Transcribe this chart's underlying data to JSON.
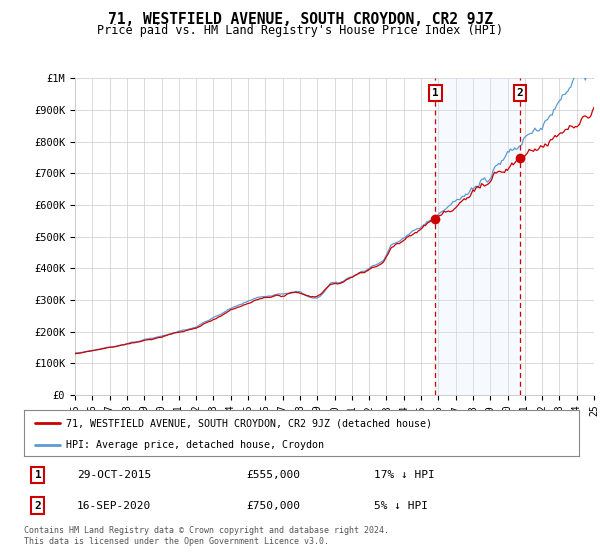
{
  "title": "71, WESTFIELD AVENUE, SOUTH CROYDON, CR2 9JZ",
  "subtitle": "Price paid vs. HM Land Registry's House Price Index (HPI)",
  "ylim": [
    0,
    1000000
  ],
  "yticks": [
    0,
    100000,
    200000,
    300000,
    400000,
    500000,
    600000,
    700000,
    800000,
    900000,
    1000000
  ],
  "ytick_labels": [
    "£0",
    "£100K",
    "£200K",
    "£300K",
    "£400K",
    "£500K",
    "£600K",
    "£700K",
    "£800K",
    "£900K",
    "£1M"
  ],
  "sale1_year": 2015.83,
  "sale1_price": 555000,
  "sale1_date": "29-OCT-2015",
  "sale1_amount": "£555,000",
  "sale1_hpi": "17% ↓ HPI",
  "sale2_year": 2020.71,
  "sale2_price": 750000,
  "sale2_date": "16-SEP-2020",
  "sale2_amount": "£750,000",
  "sale2_hpi": "5% ↓ HPI",
  "hpi_color": "#5b9bd5",
  "price_color": "#cc0000",
  "vline_color": "#cc0000",
  "shade_color": "#ddeeff",
  "background_color": "#ffffff",
  "grid_color": "#cccccc",
  "legend_label1": "71, WESTFIELD AVENUE, SOUTH CROYDON, CR2 9JZ (detached house)",
  "legend_label2": "HPI: Average price, detached house, Croydon",
  "footnote": "Contains HM Land Registry data © Crown copyright and database right 2024.\nThis data is licensed under the Open Government Licence v3.0.",
  "xmin": 1995,
  "xmax": 2025
}
